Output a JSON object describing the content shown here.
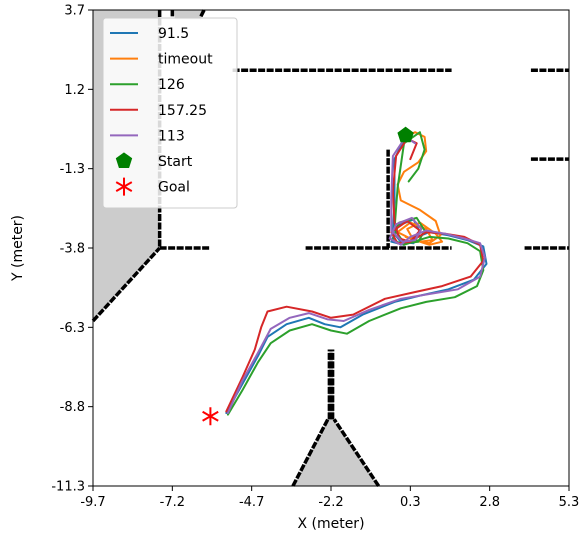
{
  "chart_data": {
    "type": "line",
    "title": "",
    "xlabel": "X (meter)",
    "ylabel": "Y (meter)",
    "xlim": [
      -9.7,
      5.3
    ],
    "ylim": [
      -11.3,
      3.7
    ],
    "xticks": [
      "-9.7",
      "-7.2",
      "-4.7",
      "-2.2",
      "0.3",
      "2.8",
      "5.3"
    ],
    "yticks": [
      "3.7",
      "1.2",
      "-1.3",
      "-3.8",
      "-6.3",
      "-8.8",
      "-11.3"
    ],
    "grid": false,
    "legend_position": "top-left",
    "series": [
      {
        "name": "91.5",
        "color": "#1f77b4",
        "points": [
          [
            -5.5,
            -9.0
          ],
          [
            -5.0,
            -8.1
          ],
          [
            -4.5,
            -7.2
          ],
          [
            -4.2,
            -6.6
          ],
          [
            -3.6,
            -6.2
          ],
          [
            -2.9,
            -6.0
          ],
          [
            -2.4,
            -6.2
          ],
          [
            -1.9,
            -6.3
          ],
          [
            -1.2,
            -5.9
          ],
          [
            -0.2,
            -5.5
          ],
          [
            0.6,
            -5.3
          ],
          [
            1.5,
            -5.1
          ],
          [
            2.3,
            -4.8
          ],
          [
            2.7,
            -4.3
          ],
          [
            2.6,
            -3.75
          ],
          [
            2.1,
            -3.55
          ],
          [
            1.5,
            -3.4
          ],
          [
            0.9,
            -3.3
          ],
          [
            0.4,
            -3.5
          ],
          [
            0.1,
            -3.7
          ],
          [
            -0.3,
            -3.6
          ],
          [
            -0.1,
            -3.1
          ],
          [
            0.4,
            -2.9
          ],
          [
            0.6,
            -3.3
          ],
          [
            0.4,
            -3.65
          ],
          [
            0.0,
            -3.6
          ],
          [
            -0.25,
            -3.3
          ],
          [
            -0.2,
            -2.3
          ],
          [
            -0.2,
            -1.0
          ],
          [
            0.15,
            -0.3
          ]
        ]
      },
      {
        "name": "timeout",
        "color": "#ff7f0e",
        "points": [
          [
            0.15,
            -0.3
          ],
          [
            0.45,
            -0.15
          ],
          [
            0.75,
            -0.3
          ],
          [
            0.8,
            -0.75
          ],
          [
            0.55,
            -1.1
          ],
          [
            0.1,
            -1.4
          ],
          [
            -0.1,
            -1.8
          ],
          [
            0.0,
            -2.3
          ],
          [
            0.6,
            -2.6
          ],
          [
            1.1,
            -2.95
          ],
          [
            1.25,
            -3.4
          ],
          [
            0.9,
            -3.65
          ],
          [
            0.4,
            -3.55
          ],
          [
            0.2,
            -3.2
          ],
          [
            0.6,
            -3.0
          ],
          [
            1.1,
            -3.35
          ],
          [
            1.3,
            -3.6
          ],
          [
            0.9,
            -3.7
          ],
          [
            0.3,
            -3.5
          ],
          [
            -0.1,
            -3.3
          ],
          [
            0.3,
            -3.0
          ],
          [
            0.8,
            -3.2
          ],
          [
            1.0,
            -3.55
          ],
          [
            0.6,
            -3.6
          ],
          [
            0.15,
            -3.45
          ]
        ]
      },
      {
        "name": "126",
        "color": "#2ca02c",
        "points": [
          [
            -5.45,
            -9.05
          ],
          [
            -5.0,
            -8.3
          ],
          [
            -4.5,
            -7.4
          ],
          [
            -4.1,
            -6.8
          ],
          [
            -3.5,
            -6.4
          ],
          [
            -2.8,
            -6.2
          ],
          [
            -2.2,
            -6.4
          ],
          [
            -1.7,
            -6.5
          ],
          [
            -1.0,
            -6.1
          ],
          [
            0.0,
            -5.7
          ],
          [
            0.8,
            -5.5
          ],
          [
            1.7,
            -5.35
          ],
          [
            2.4,
            -5.0
          ],
          [
            2.6,
            -4.5
          ],
          [
            2.5,
            -3.9
          ],
          [
            2.1,
            -3.65
          ],
          [
            1.5,
            -3.5
          ],
          [
            0.9,
            -3.45
          ],
          [
            0.4,
            -3.6
          ],
          [
            0.1,
            -3.7
          ],
          [
            -0.25,
            -3.55
          ],
          [
            -0.05,
            -3.0
          ],
          [
            0.5,
            -2.85
          ],
          [
            0.75,
            -3.25
          ],
          [
            0.55,
            -3.6
          ],
          [
            0.1,
            -3.65
          ],
          [
            -0.2,
            -3.2
          ],
          [
            -0.1,
            -1.9
          ],
          [
            0.1,
            -0.5
          ],
          [
            0.6,
            -0.15
          ],
          [
            0.75,
            -0.7
          ],
          [
            0.55,
            -1.3
          ],
          [
            0.25,
            -1.7
          ]
        ]
      },
      {
        "name": "157.25",
        "color": "#d62728",
        "points": [
          [
            -5.5,
            -8.95
          ],
          [
            -5.0,
            -7.9
          ],
          [
            -4.6,
            -7.0
          ],
          [
            -4.4,
            -6.3
          ],
          [
            -4.2,
            -5.8
          ],
          [
            -3.6,
            -5.65
          ],
          [
            -2.8,
            -5.8
          ],
          [
            -2.2,
            -6.0
          ],
          [
            -1.5,
            -5.9
          ],
          [
            -0.5,
            -5.4
          ],
          [
            0.4,
            -5.2
          ],
          [
            1.3,
            -5.0
          ],
          [
            2.2,
            -4.7
          ],
          [
            2.6,
            -4.2
          ],
          [
            2.5,
            -3.7
          ],
          [
            2.0,
            -3.45
          ],
          [
            1.4,
            -3.35
          ],
          [
            0.8,
            -3.3
          ],
          [
            0.3,
            -3.6
          ],
          [
            -0.1,
            -3.65
          ],
          [
            -0.3,
            -3.3
          ],
          [
            0.2,
            -2.95
          ],
          [
            0.6,
            -3.25
          ],
          [
            0.3,
            -3.6
          ],
          [
            -0.05,
            -3.5
          ],
          [
            -0.2,
            -3.0
          ],
          [
            -0.25,
            -2.0
          ],
          [
            -0.15,
            -0.9
          ],
          [
            0.2,
            -0.35
          ],
          [
            0.5,
            -0.5
          ],
          [
            0.3,
            -1.0
          ]
        ]
      },
      {
        "name": "113",
        "color": "#9467bd",
        "points": [
          [
            -5.45,
            -9.0
          ],
          [
            -5.0,
            -8.0
          ],
          [
            -4.5,
            -7.1
          ],
          [
            -4.1,
            -6.35
          ],
          [
            -3.5,
            -6.0
          ],
          [
            -2.9,
            -5.85
          ],
          [
            -2.3,
            -6.05
          ],
          [
            -1.8,
            -6.1
          ],
          [
            -1.0,
            -5.75
          ],
          [
            0.0,
            -5.4
          ],
          [
            0.9,
            -5.25
          ],
          [
            1.8,
            -5.1
          ],
          [
            2.5,
            -4.7
          ],
          [
            2.65,
            -4.1
          ],
          [
            2.5,
            -3.65
          ],
          [
            2.0,
            -3.5
          ],
          [
            1.4,
            -3.35
          ],
          [
            0.8,
            -3.25
          ],
          [
            0.3,
            -3.45
          ],
          [
            0.0,
            -3.7
          ],
          [
            -0.35,
            -3.5
          ],
          [
            -0.15,
            -3.05
          ],
          [
            0.35,
            -2.85
          ],
          [
            0.65,
            -3.2
          ],
          [
            0.45,
            -3.55
          ],
          [
            0.05,
            -3.6
          ],
          [
            -0.3,
            -3.25
          ],
          [
            -0.3,
            -2.2
          ],
          [
            -0.25,
            -0.9
          ],
          [
            0.15,
            -0.3
          ],
          [
            0.45,
            -0.5
          ]
        ]
      }
    ],
    "markers": [
      {
        "name": "Start",
        "shape": "pentagon",
        "color": "#008000",
        "x": 0.15,
        "y": -0.25
      },
      {
        "name": "Goal",
        "shape": "star",
        "color": "#ff0000",
        "x": -6.0,
        "y": -9.1
      }
    ],
    "obstacles": {
      "fill": "#cccccc",
      "regions": [
        [
          [
            -9.7,
            3.7
          ],
          [
            -7.6,
            3.7
          ],
          [
            -7.6,
            -3.8
          ],
          [
            -9.7,
            -6.1
          ]
        ],
        [
          [
            -7.2,
            3.7
          ],
          [
            -6.2,
            3.7
          ],
          [
            -6.3,
            3.4
          ],
          [
            -7.1,
            3.4
          ]
        ],
        [
          [
            -3.4,
            -11.3
          ],
          [
            -2.3,
            -9.2
          ],
          [
            -2.25,
            -7.0
          ],
          [
            -2.15,
            -7.0
          ],
          [
            -2.1,
            -9.2
          ],
          [
            -0.7,
            -11.3
          ]
        ]
      ],
      "walls": [
        [
          [
            -7.6,
            3.7
          ],
          [
            -7.6,
            -3.8
          ]
        ],
        [
          [
            -7.6,
            -3.8
          ],
          [
            -6.0,
            -3.8
          ]
        ],
        [
          [
            -9.7,
            -6.1
          ],
          [
            -7.6,
            -3.8
          ]
        ],
        [
          [
            -5.3,
            1.8
          ],
          [
            1.6,
            1.8
          ]
        ],
        [
          [
            4.1,
            1.8
          ],
          [
            5.3,
            1.8
          ]
        ],
        [
          [
            -3.0,
            -3.8
          ],
          [
            1.6,
            -3.8
          ]
        ],
        [
          [
            3.9,
            -3.8
          ],
          [
            5.3,
            -3.8
          ]
        ],
        [
          [
            4.1,
            -1.0
          ],
          [
            5.3,
            -1.0
          ]
        ],
        [
          [
            -0.4,
            -0.7
          ],
          [
            -0.4,
            -3.8
          ]
        ],
        [
          [
            -3.4,
            -11.3
          ],
          [
            -2.3,
            -9.2
          ]
        ],
        [
          [
            -0.7,
            -11.3
          ],
          [
            -2.1,
            -9.2
          ]
        ],
        [
          [
            -2.25,
            -9.2
          ],
          [
            -2.25,
            -7.0
          ]
        ],
        [
          [
            -2.15,
            -9.2
          ],
          [
            -2.15,
            -7.0
          ]
        ],
        [
          [
            -7.2,
            3.5
          ],
          [
            -7.2,
            3.7
          ]
        ],
        [
          [
            -6.3,
            3.5
          ],
          [
            -6.2,
            3.7
          ]
        ]
      ]
    }
  }
}
